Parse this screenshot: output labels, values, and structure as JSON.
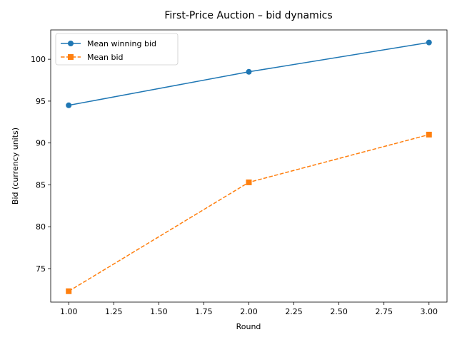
{
  "chart_data": {
    "type": "line",
    "title": "First-Price Auction – bid dynamics",
    "xlabel": "Round",
    "ylabel": "Bid (currency units)",
    "xlim": [
      0.9,
      3.1
    ],
    "ylim": [
      71,
      103.5
    ],
    "x_ticks": [
      1.0,
      1.25,
      1.5,
      1.75,
      2.0,
      2.25,
      2.5,
      2.75,
      3.0
    ],
    "x_tick_labels": [
      "1.00",
      "1.25",
      "1.50",
      "1.75",
      "2.00",
      "2.25",
      "2.50",
      "2.75",
      "3.00"
    ],
    "y_ticks": [
      75,
      80,
      85,
      90,
      95,
      100
    ],
    "y_tick_labels": [
      "75",
      "80",
      "85",
      "90",
      "95",
      "100"
    ],
    "legend_position": "top-left",
    "grid": false,
    "series": [
      {
        "name": "Mean winning bid",
        "x": [
          1,
          2,
          3
        ],
        "values": [
          94.5,
          98.5,
          102.0
        ],
        "color": "#1f77b4",
        "linestyle": "solid",
        "marker": "circle"
      },
      {
        "name": "Mean bid",
        "x": [
          1,
          2,
          3
        ],
        "values": [
          72.3,
          85.3,
          91.0
        ],
        "color": "#ff7f0e",
        "linestyle": "dashed",
        "marker": "square"
      }
    ]
  }
}
